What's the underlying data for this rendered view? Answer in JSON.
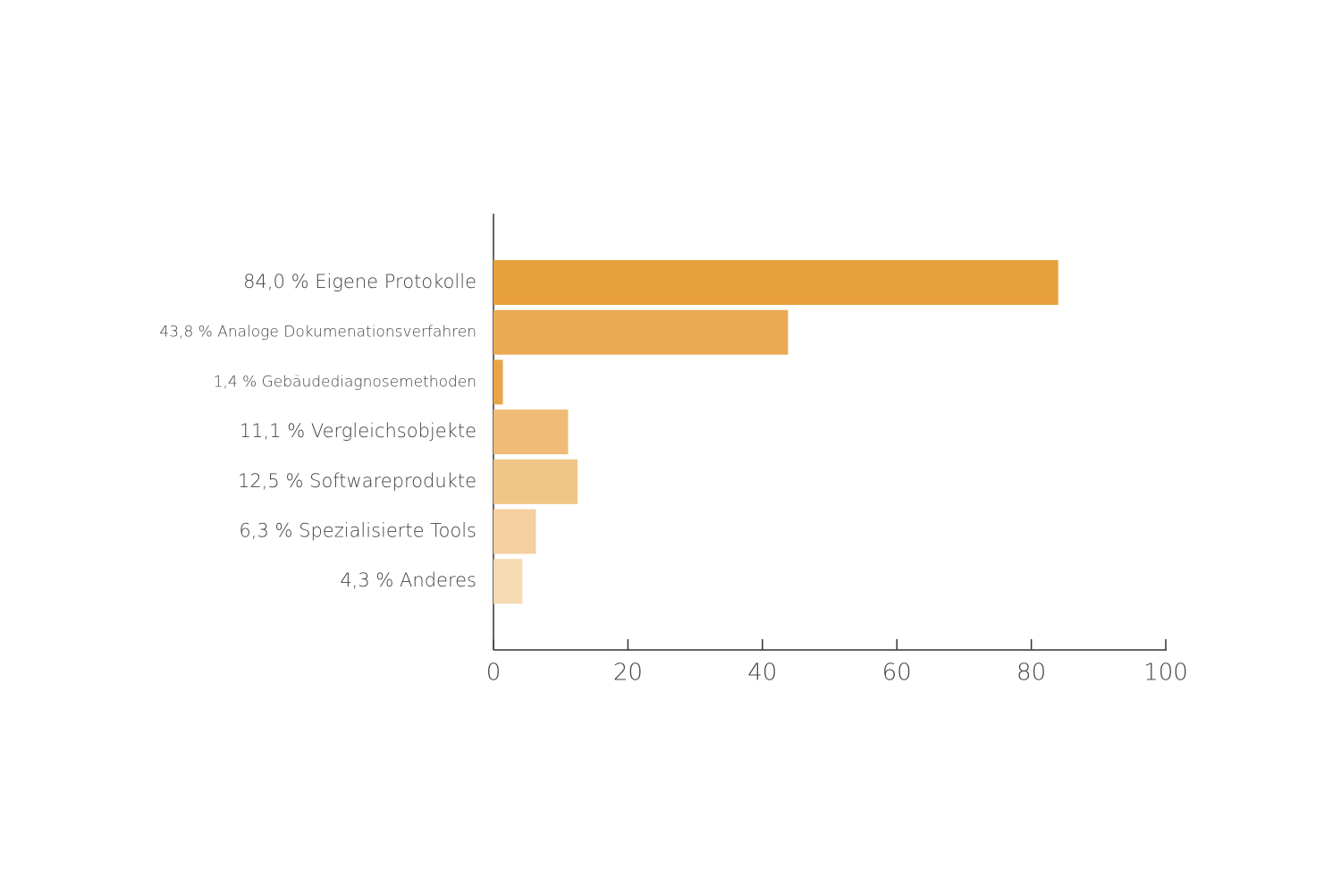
{
  "chart_data": {
    "type": "hbar",
    "categories": [
      "Eigene Protokolle",
      "Analoge Dokumenationsverfahren",
      "Gebäudediagnosemethoden",
      "Vergleichsobjekte",
      "Softwareprodukte",
      "Spezialisierte Tools",
      "Anderes"
    ],
    "values": [
      84.0,
      43.8,
      1.4,
      11.1,
      12.5,
      6.3,
      4.3
    ],
    "value_labels": [
      "84,0 %",
      "43,8 %",
      "1,4 %",
      "11,1 %",
      "12,5 %",
      "6,3 %",
      "4,3 %"
    ],
    "colors": [
      "#e8a03c",
      "#eba953",
      "#e9a449",
      "#efbb76",
      "#f1c585",
      "#f4cf9f",
      "#f6dab4"
    ],
    "xlim": [
      0,
      100
    ],
    "xticks": [
      0,
      20,
      40,
      60,
      80,
      100
    ]
  }
}
